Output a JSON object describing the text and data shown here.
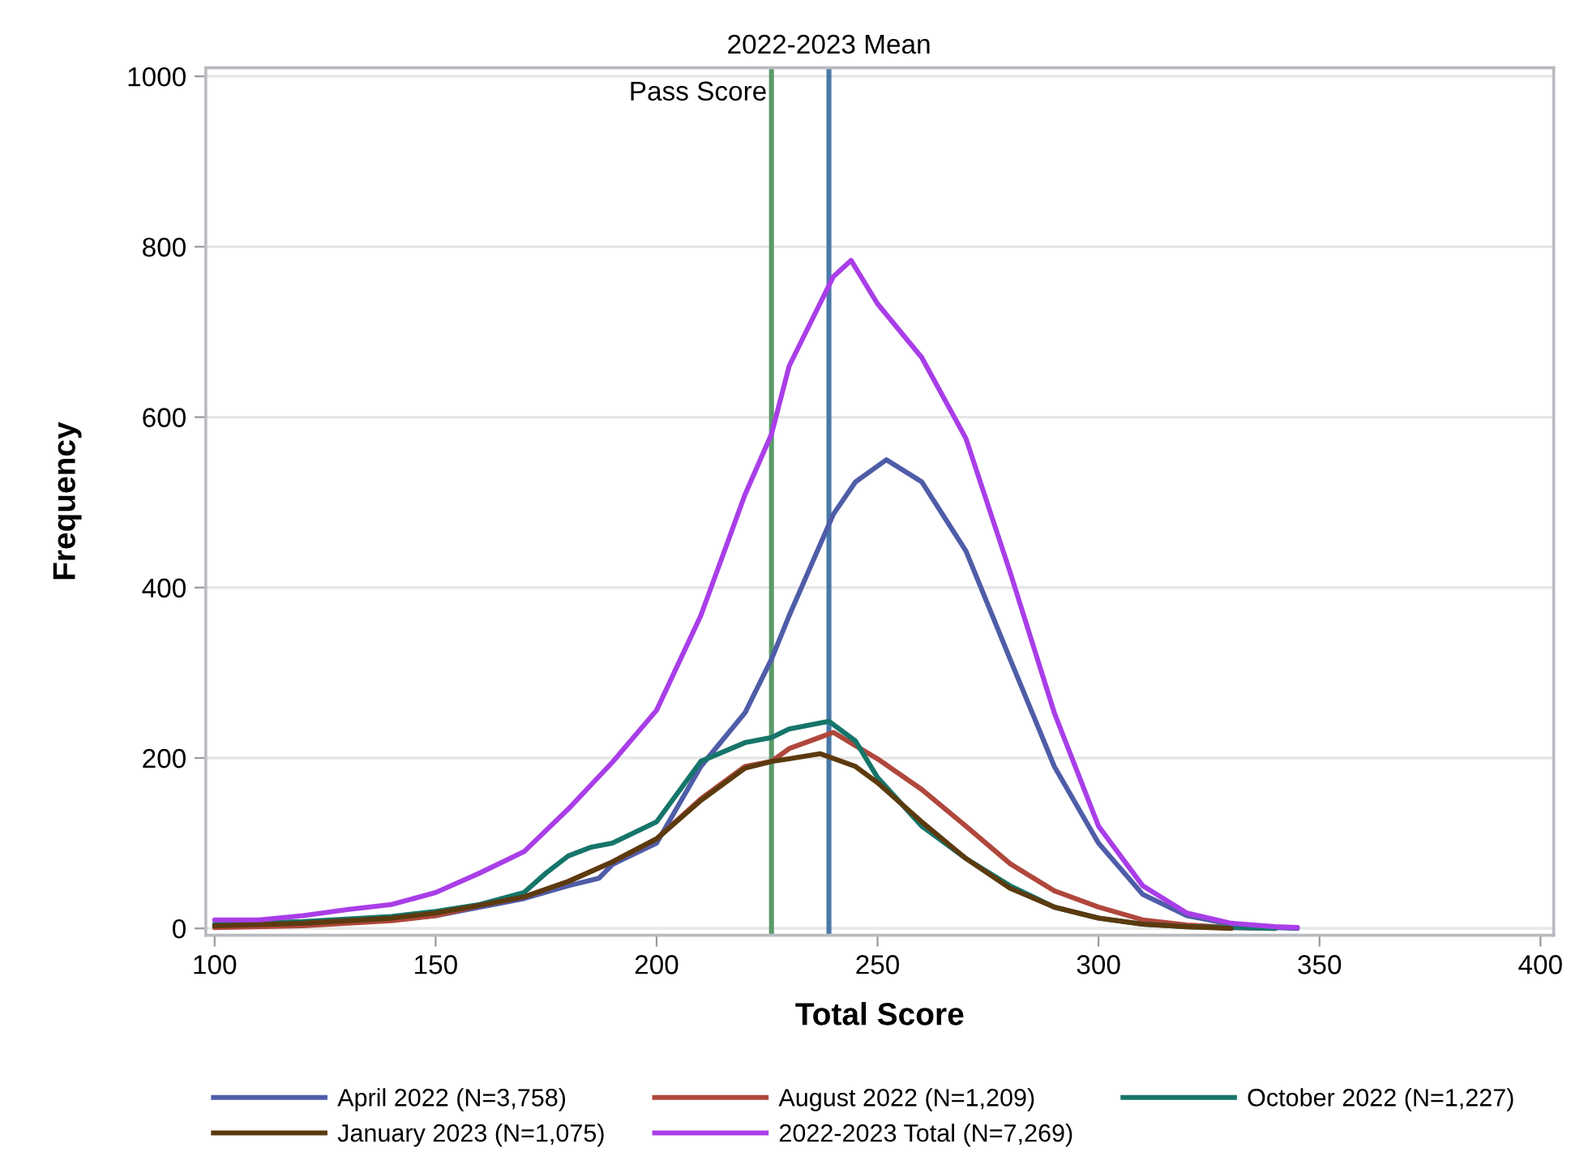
{
  "chart_data": {
    "type": "line",
    "xlabel": "Total Score",
    "ylabel": "Frequency",
    "xlim": [
      98,
      403
    ],
    "xticks": [
      100,
      150,
      200,
      250,
      300,
      350,
      400
    ],
    "ylim": [
      -8,
      1010
    ],
    "yticks": [
      0,
      200,
      400,
      600,
      800,
      1000
    ],
    "grid": "y",
    "legend": "bottom",
    "line_style": "solid",
    "marker": "none",
    "ref_lines": [
      {
        "axis": "x",
        "value": 226,
        "label": "Pass Score",
        "color": "#5a9a6a",
        "line_style": "solid"
      },
      {
        "axis": "x",
        "value": 239,
        "label": "2022-2023 Mean",
        "color": "#4a78a8",
        "line_style": "solid"
      }
    ],
    "series": [
      {
        "name": "April 2022 (N=3,758)",
        "color": "#4f5da8",
        "x": [
          100,
          120,
          140,
          150,
          160,
          170,
          180,
          187,
          190,
          200,
          210,
          220,
          226,
          230,
          240,
          245,
          252,
          260,
          270,
          280,
          290,
          300,
          310,
          320,
          330,
          340,
          345
        ],
        "values": [
          3,
          5,
          10,
          15,
          25,
          35,
          50,
          59,
          75,
          100,
          190,
          253,
          316,
          367,
          486,
          524,
          550,
          524,
          443,
          316,
          190,
          100,
          40,
          15,
          5,
          1,
          0
        ]
      },
      {
        "name": "August 2022 (N=1,209)",
        "color": "#b0473c",
        "x": [
          100,
          120,
          140,
          150,
          160,
          170,
          180,
          190,
          200,
          210,
          220,
          226,
          230,
          240,
          250,
          260,
          270,
          280,
          290,
          300,
          310,
          320,
          330,
          340
        ],
        "values": [
          1,
          3,
          9,
          15,
          27,
          37,
          55,
          78,
          105,
          152,
          190,
          196,
          211,
          230,
          199,
          163,
          120,
          76,
          44,
          25,
          10,
          4,
          1,
          0
        ]
      },
      {
        "name": "October 2022 (N=1,227)",
        "color": "#16756a",
        "x": [
          100,
          120,
          140,
          150,
          160,
          170,
          175,
          180,
          185,
          190,
          200,
          210,
          220,
          226,
          230,
          239,
          245,
          250,
          260,
          270,
          280,
          290,
          300,
          310,
          320,
          330,
          340
        ],
        "values": [
          5,
          8,
          14,
          20,
          28,
          42,
          65,
          85,
          95,
          100,
          125,
          196,
          218,
          224,
          234,
          243,
          220,
          177,
          120,
          82,
          50,
          25,
          12,
          5,
          2,
          1,
          0
        ]
      },
      {
        "name": "January 2023 (N=1,075)",
        "color": "#5c3a0f",
        "x": [
          100,
          120,
          140,
          150,
          160,
          170,
          180,
          190,
          200,
          210,
          220,
          226,
          230,
          237,
          245,
          250,
          260,
          270,
          280,
          290,
          300,
          310,
          320,
          330
        ],
        "values": [
          3,
          6,
          12,
          18,
          27,
          37,
          55,
          78,
          105,
          150,
          188,
          196,
          199,
          205,
          190,
          171,
          125,
          82,
          47,
          25,
          12,
          5,
          2,
          0
        ]
      },
      {
        "name": "2022-2023 Total (N=7,269)",
        "color": "#a93ee8",
        "x": [
          100,
          110,
          120,
          130,
          140,
          150,
          160,
          170,
          180,
          190,
          200,
          210,
          220,
          226,
          230,
          240,
          244,
          250,
          260,
          270,
          280,
          290,
          300,
          310,
          320,
          330,
          340,
          345
        ],
        "values": [
          10,
          10,
          15,
          22,
          28,
          42,
          65,
          90,
          140,
          195,
          256,
          367,
          509,
          580,
          660,
          765,
          784,
          733,
          670,
          575,
          418,
          253,
          120,
          50,
          18,
          6,
          2,
          1
        ]
      }
    ]
  }
}
